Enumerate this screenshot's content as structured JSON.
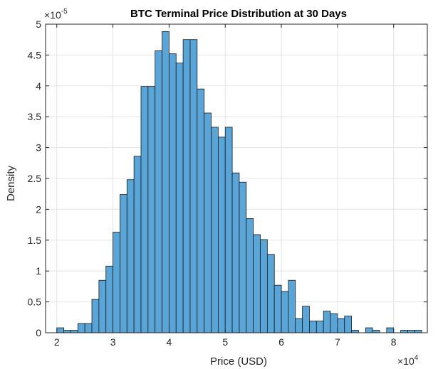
{
  "chart_data": {
    "type": "bar",
    "subtype": "histogram",
    "title": "BTC Terminal Price Distribution at 30 Days",
    "xlabel": "Price (USD)",
    "ylabel": "Density",
    "x_multiplier_label": "×10",
    "x_multiplier_exponent": "4",
    "y_multiplier_label": "×10",
    "y_multiplier_exponent": "-5",
    "xlim": [
      1.8,
      8.6
    ],
    "ylim": [
      0,
      5
    ],
    "x_ticks": [
      2,
      3,
      4,
      5,
      6,
      7,
      8
    ],
    "y_ticks": [
      0,
      0.5,
      1,
      1.5,
      2,
      2.5,
      3,
      3.5,
      4,
      4.5,
      5
    ],
    "bin_start": 2.0,
    "bin_width": 0.125,
    "values": [
      0.08,
      0.04,
      0.04,
      0.15,
      0.15,
      0.54,
      0.85,
      1.08,
      1.63,
      2.24,
      2.48,
      2.86,
      3.99,
      3.99,
      4.57,
      4.88,
      4.52,
      4.37,
      4.75,
      4.75,
      3.95,
      3.56,
      3.33,
      3.17,
      3.33,
      2.59,
      2.44,
      1.85,
      1.59,
      1.51,
      1.27,
      0.77,
      0.67,
      0.85,
      0.23,
      0.43,
      0.19,
      0.19,
      0.35,
      0.31,
      0.23,
      0.27,
      0.04,
      0.0,
      0.08,
      0.04,
      0.0,
      0.08,
      0.0,
      0.04,
      0.04,
      0.04
    ],
    "grid": true,
    "bar_color": "#5aa5d8",
    "edge_color": "#1a1a1a"
  }
}
